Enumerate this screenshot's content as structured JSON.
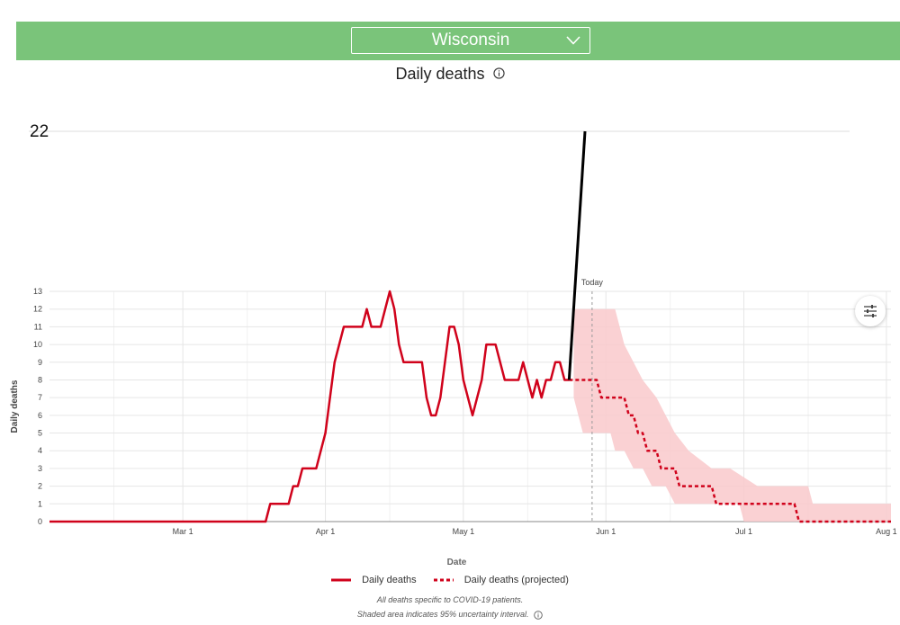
{
  "header": {
    "selected_state": "Wisconsin"
  },
  "chart_title": "Daily deaths",
  "colors": {
    "header_bg": "#7ac47a",
    "series": "#d0021b",
    "band": "#f9c9cb",
    "annotation": "#000000"
  },
  "chart_data": {
    "type": "line",
    "xlabel": "Date",
    "ylabel": "Daily deaths",
    "x_ticks": [
      "Mar 1",
      "Apr 1",
      "May 1",
      "Jun 1",
      "Jul 1",
      "Aug 1"
    ],
    "y_ticks": [
      0,
      1,
      2,
      3,
      4,
      5,
      6,
      7,
      8,
      9,
      10,
      11,
      12,
      13
    ],
    "ylim": [
      0,
      13
    ],
    "xlim": [
      "2020-02-01",
      "2020-08-02"
    ],
    "today_label": "Today",
    "today_date": "2020-05-29",
    "annotation_value_label": "22",
    "series": [
      {
        "name": "Daily deaths",
        "style": "solid",
        "points": [
          [
            "2020-02-01",
            0
          ],
          [
            "2020-03-19",
            0
          ],
          [
            "2020-03-20",
            1
          ],
          [
            "2020-03-24",
            1
          ],
          [
            "2020-03-25",
            2
          ],
          [
            "2020-03-26",
            2
          ],
          [
            "2020-03-27",
            3
          ],
          [
            "2020-03-30",
            3
          ],
          [
            "2020-04-01",
            5
          ],
          [
            "2020-04-03",
            9
          ],
          [
            "2020-04-05",
            11
          ],
          [
            "2020-04-09",
            11
          ],
          [
            "2020-04-10",
            12
          ],
          [
            "2020-04-11",
            11
          ],
          [
            "2020-04-13",
            11
          ],
          [
            "2020-04-15",
            13
          ],
          [
            "2020-04-16",
            12
          ],
          [
            "2020-04-17",
            10
          ],
          [
            "2020-04-18",
            9
          ],
          [
            "2020-04-22",
            9
          ],
          [
            "2020-04-23",
            7
          ],
          [
            "2020-04-24",
            6
          ],
          [
            "2020-04-25",
            6
          ],
          [
            "2020-04-26",
            7
          ],
          [
            "2020-04-27",
            9
          ],
          [
            "2020-04-28",
            11
          ],
          [
            "2020-04-29",
            11
          ],
          [
            "2020-04-30",
            10
          ],
          [
            "2020-05-01",
            8
          ],
          [
            "2020-05-02",
            7
          ],
          [
            "2020-05-03",
            6
          ],
          [
            "2020-05-05",
            8
          ],
          [
            "2020-05-06",
            10
          ],
          [
            "2020-05-08",
            10
          ],
          [
            "2020-05-10",
            8
          ],
          [
            "2020-05-13",
            8
          ],
          [
            "2020-05-14",
            9
          ],
          [
            "2020-05-16",
            7
          ],
          [
            "2020-05-17",
            8
          ],
          [
            "2020-05-18",
            7
          ],
          [
            "2020-05-19",
            8
          ],
          [
            "2020-05-20",
            8
          ],
          [
            "2020-05-21",
            9
          ],
          [
            "2020-05-22",
            9
          ],
          [
            "2020-05-23",
            8
          ],
          [
            "2020-05-24",
            8
          ]
        ]
      },
      {
        "name": "Daily deaths (projected)",
        "style": "dashed",
        "points": [
          [
            "2020-05-24",
            8
          ],
          [
            "2020-05-30",
            8
          ],
          [
            "2020-05-31",
            7
          ],
          [
            "2020-06-05",
            7
          ],
          [
            "2020-06-06",
            6
          ],
          [
            "2020-06-07",
            6
          ],
          [
            "2020-06-08",
            5
          ],
          [
            "2020-06-09",
            5
          ],
          [
            "2020-06-10",
            4
          ],
          [
            "2020-06-12",
            4
          ],
          [
            "2020-06-13",
            3
          ],
          [
            "2020-06-16",
            3
          ],
          [
            "2020-06-17",
            2
          ],
          [
            "2020-06-24",
            2
          ],
          [
            "2020-06-25",
            1
          ],
          [
            "2020-07-12",
            1
          ],
          [
            "2020-07-13",
            0
          ],
          [
            "2020-08-02",
            0
          ]
        ]
      }
    ],
    "uncertainty_band": {
      "upper": [
        [
          "2020-05-25",
          12
        ],
        [
          "2020-06-03",
          12
        ],
        [
          "2020-06-05",
          10
        ],
        [
          "2020-06-07",
          9
        ],
        [
          "2020-06-09",
          8
        ],
        [
          "2020-06-12",
          7
        ],
        [
          "2020-06-14",
          6
        ],
        [
          "2020-06-16",
          5
        ],
        [
          "2020-06-19",
          4
        ],
        [
          "2020-06-24",
          3
        ],
        [
          "2020-06-28",
          3
        ],
        [
          "2020-07-04",
          2
        ],
        [
          "2020-07-15",
          2
        ],
        [
          "2020-07-16",
          1
        ],
        [
          "2020-08-02",
          1
        ]
      ],
      "lower": [
        [
          "2020-05-25",
          7
        ],
        [
          "2020-05-26",
          6
        ],
        [
          "2020-05-27",
          5
        ],
        [
          "2020-06-02",
          5
        ],
        [
          "2020-06-03",
          4
        ],
        [
          "2020-06-05",
          4
        ],
        [
          "2020-06-07",
          3
        ],
        [
          "2020-06-09",
          3
        ],
        [
          "2020-06-11",
          2
        ],
        [
          "2020-06-14",
          2
        ],
        [
          "2020-06-16",
          1
        ],
        [
          "2020-06-30",
          1
        ],
        [
          "2020-07-01",
          0
        ],
        [
          "2020-08-02",
          0
        ]
      ]
    },
    "legend": {
      "position": "bottom-center",
      "items": [
        "Daily deaths",
        "Daily deaths (projected)"
      ]
    },
    "grid": true
  },
  "footnotes": [
    "All deaths specific to COVID-19 patients.",
    "Shaded area indicates 95% uncertainty interval."
  ]
}
